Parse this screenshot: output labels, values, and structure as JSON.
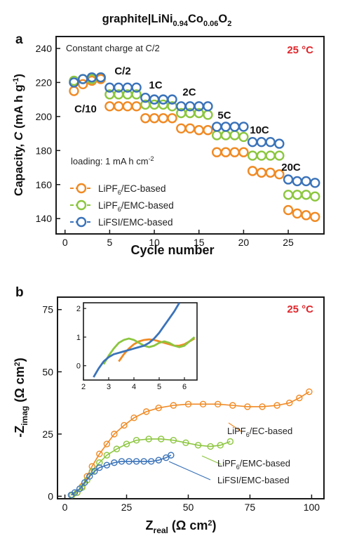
{
  "figure": {
    "title": "graphite|LiNi",
    "title_sub1": "0.94",
    "title_mid": "Co",
    "title_sub2": "0.06",
    "title_end": "O",
    "title_sub3": "2"
  },
  "colors": {
    "orange": "#F08A24",
    "green": "#8CC63F",
    "blue": "#3B73B9",
    "temp_red": "#E0262B",
    "axis": "#1a1a1a"
  },
  "chart_data": [
    {
      "type": "scatter",
      "panel_label": "a",
      "annotation": "Constant charge at C/2",
      "temperature": "25 °C",
      "loading_label": "loading: 1 mA h cm",
      "loading_sup": "-2",
      "xlabel": "Cycle number",
      "ylabel_main": "Capacity, ",
      "ylabel_var": "C",
      "ylabel_unit": " (mA h g",
      "ylabel_sup": "-1",
      "ylabel_close": ")",
      "xlim": [
        -1,
        29
      ],
      "ylim": [
        131,
        247
      ],
      "xticks": [
        0,
        5,
        10,
        15,
        20,
        25
      ],
      "yticks": [
        140,
        160,
        180,
        200,
        220,
        240
      ],
      "rate_labels": [
        "C/10",
        "C/2",
        "1C",
        "2C",
        "5C",
        "10C",
        "20C"
      ],
      "series": [
        {
          "name": "LiPF6/EC-based",
          "name_pre": "LiPF",
          "name_sub": "6",
          "name_post": "/EC-based",
          "color_key": "orange",
          "x": [
            1,
            2,
            3,
            4,
            5,
            6,
            7,
            8,
            9,
            10,
            11,
            12,
            13,
            14,
            15,
            16,
            17,
            18,
            19,
            20,
            21,
            22,
            23,
            24,
            25,
            26,
            27,
            28
          ],
          "y": [
            215,
            219,
            221,
            222,
            206,
            206,
            206,
            206,
            199,
            199,
            199,
            199,
            193,
            193,
            192,
            192,
            179,
            179,
            179,
            179,
            168,
            167,
            167,
            166,
            145,
            143,
            142,
            141
          ]
        },
        {
          "name": "LiPF6/EMC-based",
          "name_pre": "LiPF",
          "name_sub": "6",
          "name_post": "/EMC-based",
          "color_key": "green",
          "x": [
            1,
            2,
            3,
            4,
            5,
            6,
            7,
            8,
            9,
            10,
            11,
            12,
            13,
            14,
            15,
            16,
            17,
            18,
            19,
            20,
            21,
            22,
            23,
            24,
            25,
            26,
            27,
            28
          ],
          "y": [
            221,
            222,
            222,
            223,
            213,
            213,
            213,
            213,
            207,
            207,
            207,
            206,
            202,
            202,
            202,
            201,
            189,
            189,
            189,
            188,
            177,
            177,
            177,
            177,
            154,
            154,
            154,
            153
          ]
        },
        {
          "name": "LiFSI/EMC-based",
          "name_pre": "LiFSI/EMC-based",
          "name_sub": "",
          "name_post": "",
          "color_key": "blue",
          "x": [
            1,
            2,
            3,
            4,
            5,
            6,
            7,
            8,
            9,
            10,
            11,
            12,
            13,
            14,
            15,
            16,
            17,
            18,
            19,
            20,
            21,
            22,
            23,
            24,
            25,
            26,
            27,
            28
          ],
          "y": [
            220,
            222,
            223,
            223,
            217,
            217,
            217,
            217,
            211,
            210,
            210,
            210,
            206,
            206,
            206,
            206,
            194,
            194,
            194,
            194,
            185,
            185,
            185,
            184,
            163,
            162,
            162,
            161
          ]
        }
      ]
    },
    {
      "type": "scatter",
      "panel_label": "b",
      "temperature": "25 °C",
      "xlabel_main": "Z",
      "xlabel_sub": "real",
      "xlabel_unit": " (Ω cm",
      "xlabel_sup": "2",
      "xlabel_close": ")",
      "ylabel_main": "-Z",
      "ylabel_sub": "imag",
      "ylabel_unit": " (Ω cm",
      "ylabel_sup": "2",
      "ylabel_close": ")",
      "xlim": [
        -3,
        105
      ],
      "ylim": [
        -1,
        80
      ],
      "xticks": [
        0,
        25,
        50,
        75,
        100
      ],
      "yticks": [
        0,
        25,
        50,
        75
      ],
      "series": [
        {
          "name": "LiPF6/EC-based",
          "name_pre": "LiPF",
          "name_sub": "6",
          "name_post": "/EC-based",
          "color_key": "orange",
          "x": [
            3,
            5,
            7,
            9,
            11,
            14,
            17,
            20,
            24,
            28,
            33,
            38,
            44,
            50,
            56,
            62,
            68,
            74,
            80,
            86,
            91,
            95,
            99
          ],
          "y": [
            0.5,
            1.5,
            4,
            8,
            12,
            17,
            21,
            25,
            28.5,
            31.5,
            34,
            35.5,
            36.5,
            37,
            37,
            37,
            36.5,
            36,
            36,
            36.5,
            37.5,
            39.5,
            42
          ]
        },
        {
          "name": "LiPF6/EMC-based",
          "name_pre": "LiPF",
          "name_sub": "6",
          "name_post": "/EMC-based",
          "color_key": "green",
          "x": [
            3,
            5,
            7,
            9,
            11,
            14,
            17,
            21,
            25,
            29,
            34,
            39,
            44,
            49,
            54,
            59,
            63,
            67
          ],
          "y": [
            0.5,
            1.5,
            3.5,
            6.5,
            10,
            13.5,
            16.5,
            19,
            21,
            22.5,
            23,
            23,
            22.5,
            21.5,
            20.5,
            20,
            20.5,
            22
          ]
        },
        {
          "name": "LiFSI/EMC-based",
          "name_pre": "LiFSI/EMC-based",
          "name_sub": "",
          "name_post": "",
          "color_key": "blue",
          "x": [
            2.5,
            4,
            6,
            8,
            10,
            12,
            14,
            17,
            20,
            23,
            26,
            29,
            32,
            35,
            38,
            41,
            43
          ],
          "y": [
            0.5,
            1.5,
            3,
            5.5,
            8,
            10,
            11.5,
            12.5,
            13.5,
            14,
            14,
            14,
            14,
            14,
            14.5,
            15.5,
            16.5
          ]
        }
      ],
      "inset": {
        "xlim": [
          2,
          6.5
        ],
        "ylim": [
          -0.5,
          2.2
        ],
        "xticks": [
          2,
          3,
          4,
          5,
          6
        ],
        "yticks": [
          0,
          1,
          2
        ],
        "series": [
          {
            "color_key": "orange",
            "x": [
              3.4,
              3.6,
              3.8,
              4.0,
              4.2,
              4.4,
              4.6,
              4.8,
              5.0,
              5.2,
              5.4,
              5.6,
              5.8,
              6.0,
              6.2,
              6.4
            ],
            "y": [
              0.15,
              0.4,
              0.6,
              0.75,
              0.85,
              0.9,
              0.92,
              0.9,
              0.85,
              0.8,
              0.75,
              0.7,
              0.7,
              0.75,
              0.85,
              0.95
            ]
          },
          {
            "color_key": "green",
            "x": [
              2.8,
              3.0,
              3.2,
              3.4,
              3.6,
              3.8,
              4.0,
              4.2,
              4.4,
              4.6,
              4.8,
              5.0,
              5.2,
              5.4,
              5.6,
              5.8,
              6.0,
              6.2,
              6.4
            ],
            "y": [
              0.05,
              0.35,
              0.6,
              0.8,
              0.9,
              0.95,
              0.9,
              0.8,
              0.7,
              0.65,
              0.7,
              0.8,
              0.85,
              0.8,
              0.7,
              0.65,
              0.7,
              0.85,
              1.0
            ]
          },
          {
            "color_key": "blue",
            "x": [
              2.4,
              2.6,
              2.8,
              3.0,
              3.2,
              3.4,
              3.6,
              3.8,
              4.0,
              4.2,
              4.4,
              4.6,
              4.8,
              5.0,
              5.2,
              5.4,
              5.6,
              5.8
            ],
            "y": [
              -0.4,
              -0.1,
              0.15,
              0.3,
              0.4,
              0.45,
              0.5,
              0.55,
              0.6,
              0.65,
              0.7,
              0.8,
              0.95,
              1.15,
              1.4,
              1.65,
              1.9,
              2.2
            ]
          }
        ]
      }
    }
  ]
}
